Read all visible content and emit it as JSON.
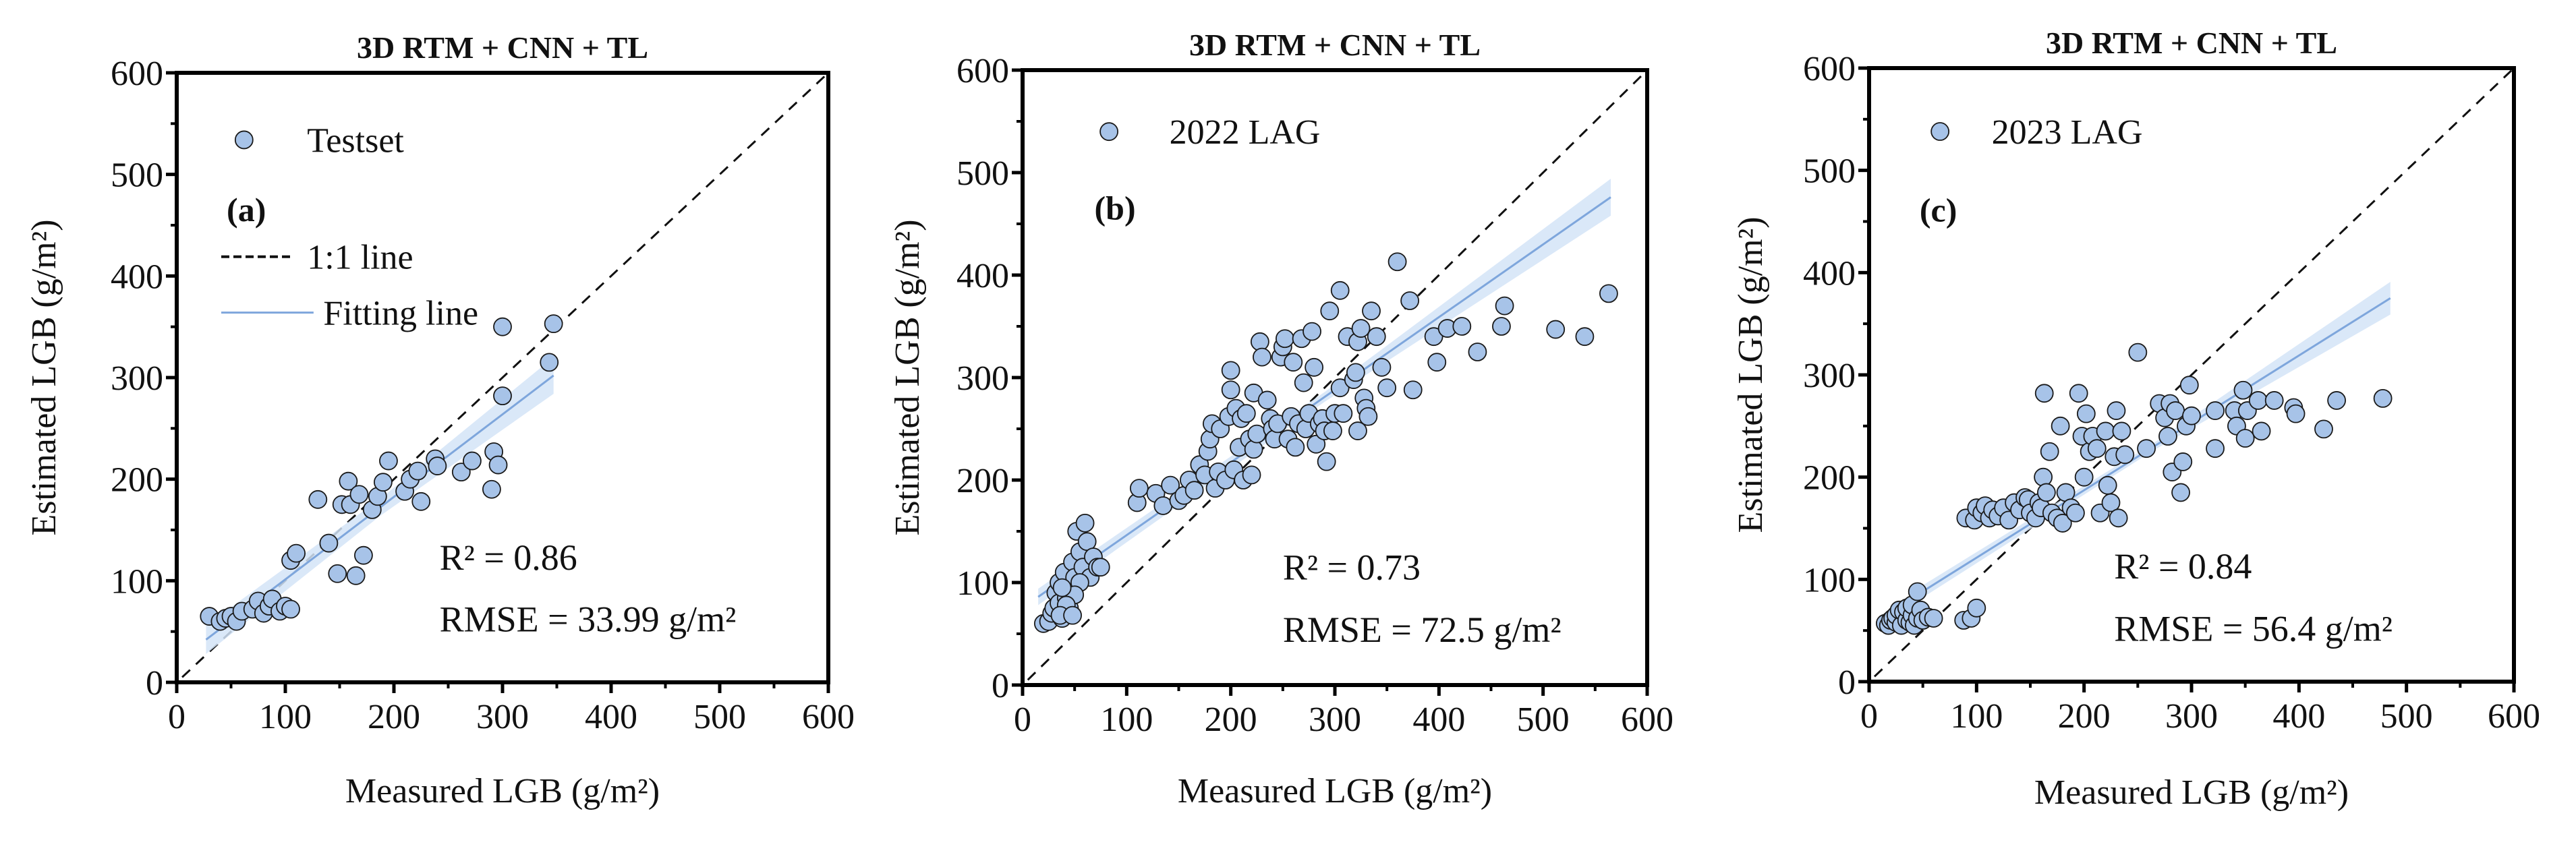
{
  "chart_data": [
    {
      "type": "scatter",
      "panel_label": "(a)",
      "title": "3D RTM + CNN + TL",
      "xlabel": "Measured LGB (g/m²)",
      "ylabel": "Estimated LGB (g/m²)",
      "xlim": [
        0,
        600
      ],
      "ylim": [
        0,
        600
      ],
      "xticks": [
        0,
        100,
        200,
        300,
        400,
        500,
        600
      ],
      "yticks": [
        0,
        100,
        200,
        300,
        400,
        500,
        600
      ],
      "legend": {
        "series": "Testset",
        "one_to_one": "1:1 line",
        "fit": "Fitting line",
        "placement": "top-left"
      },
      "r2_text": "R² = 0.86",
      "rmse_text": "RMSE = 33.99 g/m²",
      "fit_line": {
        "x": [
          27,
          347
        ],
        "y": [
          42,
          302
        ],
        "ci_halfwidth": [
          14,
          18
        ]
      },
      "points": [
        [
          30,
          65
        ],
        [
          40,
          60
        ],
        [
          45,
          63
        ],
        [
          50,
          65
        ],
        [
          55,
          60
        ],
        [
          60,
          70
        ],
        [
          70,
          72
        ],
        [
          75,
          80
        ],
        [
          80,
          68
        ],
        [
          85,
          75
        ],
        [
          88,
          82
        ],
        [
          95,
          70
        ],
        [
          100,
          75
        ],
        [
          105,
          72
        ],
        [
          105,
          120
        ],
        [
          110,
          127
        ],
        [
          130,
          180
        ],
        [
          140,
          137
        ],
        [
          148,
          107
        ],
        [
          152,
          175
        ],
        [
          158,
          198
        ],
        [
          160,
          175
        ],
        [
          165,
          105
        ],
        [
          168,
          185
        ],
        [
          172,
          125
        ],
        [
          180,
          170
        ],
        [
          185,
          183
        ],
        [
          190,
          197
        ],
        [
          195,
          218
        ],
        [
          210,
          188
        ],
        [
          215,
          200
        ],
        [
          222,
          208
        ],
        [
          225,
          178
        ],
        [
          238,
          220
        ],
        [
          240,
          213
        ],
        [
          262,
          207
        ],
        [
          272,
          218
        ],
        [
          290,
          190
        ],
        [
          292,
          227
        ],
        [
          296,
          214
        ],
        [
          300,
          282
        ],
        [
          300,
          350
        ],
        [
          343,
          315
        ],
        [
          347,
          353
        ]
      ]
    },
    {
      "type": "scatter",
      "panel_label": "(b)",
      "title": "3D RTM + CNN + TL",
      "xlabel": "Measured LGB (g/m²)",
      "ylabel": "Estimated LGB (g/m²)",
      "xlim": [
        0,
        600
      ],
      "ylim": [
        0,
        600
      ],
      "xticks": [
        0,
        100,
        200,
        300,
        400,
        500,
        600
      ],
      "yticks": [
        0,
        100,
        200,
        300,
        400,
        500,
        600
      ],
      "legend": {
        "series": "2022 LAG",
        "placement": "top-left"
      },
      "r2_text": "R² = 0.73",
      "rmse_text": "RMSE = 72.5 g/m²",
      "fit_line": {
        "x": [
          15,
          565
        ],
        "y": [
          86,
          476
        ],
        "ci_halfwidth": [
          8,
          18
        ]
      },
      "points": [
        [
          20,
          60
        ],
        [
          25,
          62
        ],
        [
          28,
          70
        ],
        [
          30,
          75
        ],
        [
          32,
          90
        ],
        [
          35,
          80
        ],
        [
          35,
          100
        ],
        [
          38,
          65
        ],
        [
          40,
          70
        ],
        [
          40,
          110
        ],
        [
          42,
          85
        ],
        [
          45,
          95
        ],
        [
          45,
          75
        ],
        [
          48,
          120
        ],
        [
          50,
          105
        ],
        [
          52,
          150
        ],
        [
          55,
          130
        ],
        [
          58,
          115
        ],
        [
          60,
          158
        ],
        [
          62,
          140
        ],
        [
          65,
          105
        ],
        [
          68,
          125
        ],
        [
          72,
          115
        ],
        [
          75,
          115
        ],
        [
          55,
          100
        ],
        [
          50,
          88
        ],
        [
          42,
          78
        ],
        [
          38,
          95
        ],
        [
          36,
          68
        ],
        [
          48,
          68
        ],
        [
          110,
          178
        ],
        [
          112,
          192
        ],
        [
          128,
          187
        ],
        [
          135,
          175
        ],
        [
          142,
          195
        ],
        [
          150,
          180
        ],
        [
          155,
          185
        ],
        [
          160,
          200
        ],
        [
          165,
          190
        ],
        [
          170,
          215
        ],
        [
          175,
          205
        ],
        [
          178,
          228
        ],
        [
          180,
          240
        ],
        [
          182,
          255
        ],
        [
          185,
          192
        ],
        [
          188,
          208
        ],
        [
          190,
          250
        ],
        [
          195,
          200
        ],
        [
          198,
          262
        ],
        [
          200,
          307
        ],
        [
          200,
          288
        ],
        [
          203,
          210
        ],
        [
          205,
          270
        ],
        [
          208,
          232
        ],
        [
          210,
          260
        ],
        [
          212,
          200
        ],
        [
          215,
          265
        ],
        [
          218,
          240
        ],
        [
          220,
          205
        ],
        [
          222,
          285
        ],
        [
          222,
          230
        ],
        [
          225,
          245
        ],
        [
          228,
          335
        ],
        [
          230,
          320
        ],
        [
          235,
          278
        ],
        [
          238,
          260
        ],
        [
          240,
          250
        ],
        [
          242,
          240
        ],
        [
          245,
          255
        ],
        [
          248,
          320
        ],
        [
          250,
          330
        ],
        [
          252,
          338
        ],
        [
          255,
          240
        ],
        [
          258,
          262
        ],
        [
          260,
          315
        ],
        [
          262,
          232
        ],
        [
          265,
          255
        ],
        [
          268,
          338
        ],
        [
          270,
          295
        ],
        [
          272,
          250
        ],
        [
          275,
          265
        ],
        [
          278,
          345
        ],
        [
          280,
          310
        ],
        [
          282,
          235
        ],
        [
          285,
          255
        ],
        [
          288,
          260
        ],
        [
          290,
          248
        ],
        [
          292,
          218
        ],
        [
          295,
          365
        ],
        [
          298,
          248
        ],
        [
          300,
          265
        ],
        [
          305,
          385
        ],
        [
          305,
          290
        ],
        [
          308,
          265
        ],
        [
          312,
          340
        ],
        [
          318,
          298
        ],
        [
          320,
          305
        ],
        [
          322,
          248
        ],
        [
          322,
          335
        ],
        [
          325,
          348
        ],
        [
          328,
          280
        ],
        [
          330,
          270
        ],
        [
          332,
          262
        ],
        [
          335,
          365
        ],
        [
          340,
          340
        ],
        [
          345,
          310
        ],
        [
          350,
          290
        ],
        [
          360,
          413
        ],
        [
          372,
          375
        ],
        [
          375,
          288
        ],
        [
          395,
          340
        ],
        [
          398,
          315
        ],
        [
          408,
          348
        ],
        [
          422,
          350
        ],
        [
          437,
          325
        ],
        [
          460,
          350
        ],
        [
          463,
          370
        ],
        [
          512,
          347
        ],
        [
          540,
          340
        ],
        [
          563,
          382
        ]
      ]
    },
    {
      "type": "scatter",
      "panel_label": "(c)",
      "title": "3D RTM + CNN + TL",
      "xlabel": "Measured LGB (g/m²)",
      "ylabel": "Estimated LGB (g/m²)",
      "xlim": [
        0,
        600
      ],
      "ylim": [
        0,
        600
      ],
      "xticks": [
        0,
        100,
        200,
        300,
        400,
        500,
        600
      ],
      "yticks": [
        0,
        100,
        200,
        300,
        400,
        500,
        600
      ],
      "legend": {
        "series": "2023 LAG",
        "placement": "top-left"
      },
      "r2_text": "R² = 0.84",
      "rmse_text": "RMSE = 56.4 g/m²",
      "fit_line": {
        "x": [
          45,
          485
        ],
        "y": [
          85,
          375
        ],
        "ci_halfwidth": [
          6,
          16
        ]
      },
      "points": [
        [
          15,
          57
        ],
        [
          18,
          55
        ],
        [
          20,
          60
        ],
        [
          22,
          62
        ],
        [
          25,
          58
        ],
        [
          25,
          65
        ],
        [
          28,
          70
        ],
        [
          30,
          55
        ],
        [
          32,
          68
        ],
        [
          35,
          60
        ],
        [
          35,
          72
        ],
        [
          38,
          58
        ],
        [
          40,
          65
        ],
        [
          40,
          75
        ],
        [
          42,
          55
        ],
        [
          45,
          88
        ],
        [
          45,
          62
        ],
        [
          48,
          70
        ],
        [
          50,
          60
        ],
        [
          55,
          63
        ],
        [
          60,
          62
        ],
        [
          88,
          60
        ],
        [
          95,
          62
        ],
        [
          100,
          72
        ],
        [
          90,
          160
        ],
        [
          98,
          158
        ],
        [
          100,
          170
        ],
        [
          105,
          165
        ],
        [
          108,
          172
        ],
        [
          112,
          160
        ],
        [
          115,
          168
        ],
        [
          120,
          162
        ],
        [
          125,
          170
        ],
        [
          130,
          158
        ],
        [
          135,
          175
        ],
        [
          140,
          168
        ],
        [
          145,
          180
        ],
        [
          148,
          178
        ],
        [
          150,
          165
        ],
        [
          155,
          160
        ],
        [
          158,
          175
        ],
        [
          160,
          170
        ],
        [
          162,
          200
        ],
        [
          163,
          282
        ],
        [
          165,
          185
        ],
        [
          168,
          225
        ],
        [
          170,
          165
        ],
        [
          175,
          160
        ],
        [
          178,
          250
        ],
        [
          180,
          155
        ],
        [
          183,
          185
        ],
        [
          188,
          170
        ],
        [
          192,
          165
        ],
        [
          195,
          282
        ],
        [
          198,
          240
        ],
        [
          200,
          200
        ],
        [
          202,
          262
        ],
        [
          205,
          225
        ],
        [
          208,
          240
        ],
        [
          212,
          228
        ],
        [
          215,
          165
        ],
        [
          220,
          245
        ],
        [
          222,
          192
        ],
        [
          225,
          175
        ],
        [
          228,
          220
        ],
        [
          230,
          265
        ],
        [
          232,
          160
        ],
        [
          235,
          245
        ],
        [
          238,
          222
        ],
        [
          250,
          322
        ],
        [
          258,
          228
        ],
        [
          270,
          272
        ],
        [
          275,
          258
        ],
        [
          278,
          240
        ],
        [
          280,
          272
        ],
        [
          282,
          205
        ],
        [
          285,
          265
        ],
        [
          290,
          185
        ],
        [
          292,
          215
        ],
        [
          295,
          250
        ],
        [
          298,
          290
        ],
        [
          300,
          260
        ],
        [
          322,
          265
        ],
        [
          322,
          228
        ],
        [
          340,
          265
        ],
        [
          342,
          250
        ],
        [
          348,
          285
        ],
        [
          350,
          238
        ],
        [
          352,
          265
        ],
        [
          362,
          275
        ],
        [
          365,
          245
        ],
        [
          377,
          275
        ],
        [
          395,
          268
        ],
        [
          397,
          262
        ],
        [
          423,
          247
        ],
        [
          435,
          275
        ],
        [
          478,
          277
        ]
      ]
    }
  ],
  "colors": {
    "marker_fill": "#a7c3e8",
    "marker_edge": "#1a1a1a",
    "fit_line": "#7ea6dc",
    "ci_band": "#d3e4f7",
    "one_to_one": "#111111"
  }
}
